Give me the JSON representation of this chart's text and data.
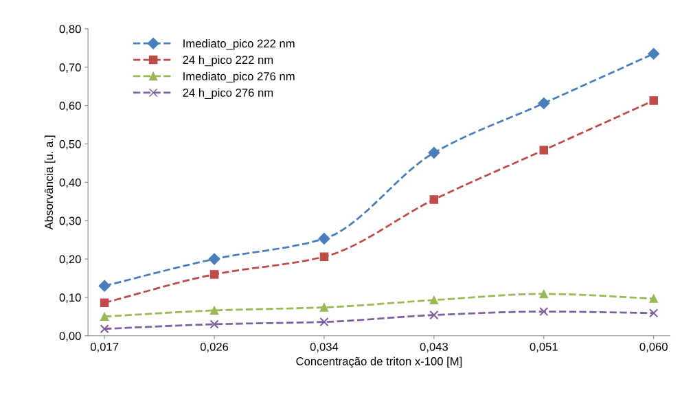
{
  "chart_data": {
    "type": "line",
    "xlabel": "Concentração de triton x-100 [M]",
    "ylabel": "Absorvância [u. a.]",
    "categories": [
      "0,017",
      "0,026",
      "0,034",
      "0,043",
      "0,051",
      "0,060"
    ],
    "series": [
      {
        "name": "Imediato_pico 222 nm",
        "color": "#4a7ebb",
        "marker": "diamond",
        "values": [
          0.13,
          0.2,
          0.253,
          0.477,
          0.606,
          0.735
        ]
      },
      {
        "name": "24 h_pico 222 nm",
        "color": "#be4b48",
        "marker": "square",
        "values": [
          0.086,
          0.16,
          0.206,
          0.355,
          0.484,
          0.613
        ]
      },
      {
        "name": "Imediato_pico 276 nm",
        "color": "#98b954",
        "marker": "triangle",
        "values": [
          0.05,
          0.066,
          0.074,
          0.093,
          0.109,
          0.097
        ]
      },
      {
        "name": "24 h_pico 276 nm",
        "color": "#7d60a0",
        "marker": "cross",
        "values": [
          0.018,
          0.03,
          0.036,
          0.054,
          0.063,
          0.059
        ]
      }
    ],
    "ylim": [
      0,
      0.8
    ],
    "yticks": [
      {
        "value": 0,
        "label": "0,00"
      },
      {
        "value": 0.1,
        "label": "0,10"
      },
      {
        "value": 0.2,
        "label": "0,20"
      },
      {
        "value": 0.3,
        "label": "0,30"
      },
      {
        "value": 0.4,
        "label": "0,40"
      },
      {
        "value": 0.5,
        "label": "0,50"
      },
      {
        "value": 0.6,
        "label": "0,60"
      },
      {
        "value": 0.7,
        "label": "0,70"
      },
      {
        "value": 0.8,
        "label": "0,80"
      }
    ],
    "line_style": "dashed",
    "grid": false,
    "legend": "top left"
  }
}
